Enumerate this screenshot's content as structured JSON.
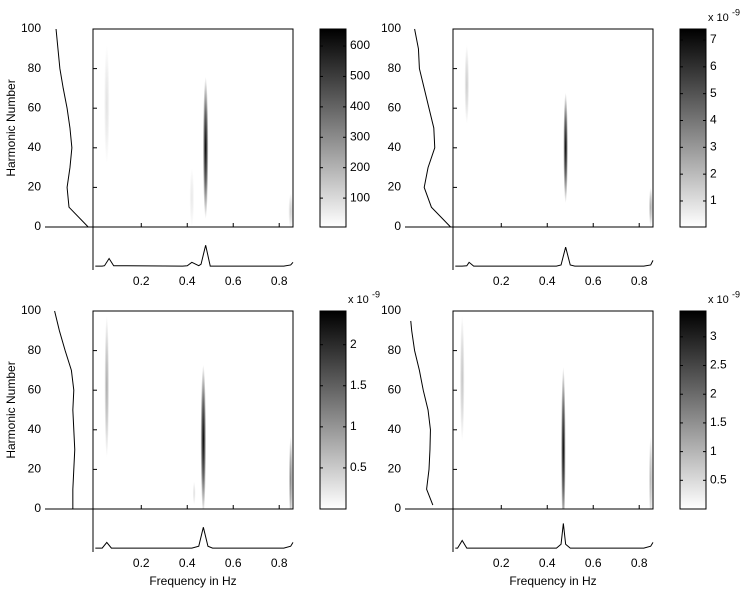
{
  "chart_data": [
    {
      "type": "heatmap",
      "ylabel": "Harmonic Number",
      "xlim": [
        -0.01,
        0.86
      ],
      "xticks": [
        0.2,
        0.4,
        0.6,
        0.8
      ],
      "ylim": [
        0,
        100
      ],
      "yticks": [
        0,
        20,
        40,
        60,
        80,
        100
      ],
      "clim": [
        5,
        656
      ],
      "cticks": [
        100,
        200,
        300,
        400,
        500,
        600
      ],
      "blobs": [
        {
          "freq": 0.48,
          "freq_spread": 0.012,
          "harmonic": 40,
          "harmonic_spread": 36,
          "peak": 650
        },
        {
          "freq": 0.05,
          "freq_spread": 0.012,
          "harmonic": 62,
          "harmonic_spread": 30,
          "peak": 80
        },
        {
          "freq": 0.42,
          "freq_spread": 0.01,
          "harmonic": 15,
          "harmonic_spread": 15,
          "peak": 60
        },
        {
          "freq": 0.85,
          "freq_spread": 0.01,
          "harmonic": 8,
          "harmonic_spread": 9,
          "peak": 120
        }
      ],
      "profile": {
        "harmonics": [
          100,
          90,
          80,
          70,
          60,
          50,
          40,
          30,
          20,
          10,
          0
        ],
        "values": [
          0.23,
          0.27,
          0.31,
          0.38,
          0.46,
          0.52,
          0.56,
          0.52,
          0.46,
          0.5,
          0.9
        ]
      },
      "spectrum": {
        "freqs": [
          0,
          0.03,
          0.04,
          0.06,
          0.08,
          0.38,
          0.4,
          0.42,
          0.45,
          0.46,
          0.48,
          0.5,
          0.82,
          0.85,
          0.86
        ],
        "values": [
          0.05,
          0.05,
          0.06,
          0.25,
          0.06,
          0.05,
          0.06,
          0.15,
          0.06,
          0.1,
          0.6,
          0.05,
          0.05,
          0.08,
          0.15
        ]
      }
    },
    {
      "type": "heatmap",
      "xlim": [
        -0.01,
        0.86
      ],
      "xticks": [
        0.2,
        0.4,
        0.6,
        0.8
      ],
      "ylim": [
        0,
        100
      ],
      "yticks": [
        0,
        20,
        40,
        60,
        80,
        100
      ],
      "clim": [
        0.03,
        7.41
      ],
      "cticks": [
        1,
        2,
        3,
        4,
        5,
        6,
        7
      ],
      "colorbar_exponent": {
        "base": "x 10",
        "power": "-9"
      },
      "blobs": [
        {
          "freq": 0.48,
          "freq_spread": 0.01,
          "harmonic": 40,
          "harmonic_spread": 28,
          "peak": 7.3
        },
        {
          "freq": 0.05,
          "freq_spread": 0.01,
          "harmonic": 72,
          "harmonic_spread": 20,
          "peak": 1.5
        },
        {
          "freq": 0.85,
          "freq_spread": 0.008,
          "harmonic": 10,
          "harmonic_spread": 10,
          "peak": 2.5
        }
      ],
      "profile": {
        "harmonics": [
          100,
          90,
          80,
          70,
          60,
          50,
          40,
          30,
          20,
          10,
          0
        ],
        "values": [
          0.2,
          0.28,
          0.3,
          0.4,
          0.5,
          0.6,
          0.62,
          0.48,
          0.4,
          0.55,
          0.95
        ]
      },
      "spectrum": {
        "freqs": [
          0,
          0.03,
          0.05,
          0.06,
          0.08,
          0.44,
          0.46,
          0.48,
          0.5,
          0.52,
          0.82,
          0.85,
          0.86
        ],
        "values": [
          0.05,
          0.05,
          0.06,
          0.15,
          0.05,
          0.05,
          0.08,
          0.55,
          0.08,
          0.05,
          0.05,
          0.08,
          0.2
        ]
      }
    },
    {
      "type": "heatmap",
      "ylabel": "Harmonic Number",
      "xlabel": "Frequency in Hz",
      "xlim": [
        -0.01,
        0.86
      ],
      "xticks": [
        0.2,
        0.4,
        0.6,
        0.8
      ],
      "ylim": [
        0,
        100
      ],
      "yticks": [
        0,
        20,
        40,
        60,
        80,
        100
      ],
      "clim": [
        0,
        2.41
      ],
      "cticks": [
        0.5,
        1,
        1.5,
        2
      ],
      "colorbar_exponent": {
        "base": "x 10",
        "power": "-9"
      },
      "blobs": [
        {
          "freq": 0.47,
          "freq_spread": 0.012,
          "harmonic": 35,
          "harmonic_spread": 38,
          "peak": 2.4
        },
        {
          "freq": 0.05,
          "freq_spread": 0.01,
          "harmonic": 62,
          "harmonic_spread": 36,
          "peak": 0.8
        },
        {
          "freq": 0.85,
          "freq_spread": 0.008,
          "harmonic": 15,
          "harmonic_spread": 22,
          "peak": 1.2
        },
        {
          "freq": 0.43,
          "freq_spread": 0.006,
          "harmonic": 8,
          "harmonic_spread": 6,
          "peak": 0.3
        }
      ],
      "profile": {
        "harmonics": [
          100,
          90,
          80,
          70,
          60,
          50,
          40,
          30,
          20,
          10,
          0
        ],
        "values": [
          0.2,
          0.3,
          0.42,
          0.55,
          0.6,
          0.58,
          0.6,
          0.62,
          0.6,
          0.58,
          0.58
        ]
      },
      "spectrum": {
        "freqs": [
          0,
          0.03,
          0.05,
          0.07,
          0.42,
          0.45,
          0.47,
          0.49,
          0.51,
          0.82,
          0.85,
          0.86
        ],
        "values": [
          0.05,
          0.05,
          0.2,
          0.05,
          0.05,
          0.1,
          0.6,
          0.1,
          0.05,
          0.05,
          0.1,
          0.2
        ]
      }
    },
    {
      "type": "heatmap",
      "xlabel": "Frequency in Hz",
      "xlim": [
        -0.01,
        0.86
      ],
      "xticks": [
        0.2,
        0.4,
        0.6,
        0.8
      ],
      "ylim": [
        0,
        100
      ],
      "yticks": [
        0,
        20,
        40,
        60,
        80,
        100
      ],
      "clim": [
        0,
        3.45
      ],
      "cticks": [
        0.5,
        1,
        1.5,
        2,
        2.5,
        3
      ],
      "colorbar_exponent": {
        "base": "x 10",
        "power": "-9"
      },
      "blobs": [
        {
          "freq": 0.47,
          "freq_spread": 0.01,
          "harmonic": 30,
          "harmonic_spread": 42,
          "peak": 3.4
        },
        {
          "freq": 0.03,
          "freq_spread": 0.01,
          "harmonic": 66,
          "harmonic_spread": 32,
          "peak": 0.8
        },
        {
          "freq": 0.85,
          "freq_spread": 0.008,
          "harmonic": 15,
          "harmonic_spread": 22,
          "peak": 1.0
        }
      ],
      "profile": {
        "harmonics": [
          95,
          90,
          80,
          70,
          60,
          50,
          40,
          30,
          20,
          10,
          2
        ],
        "values": [
          0.12,
          0.14,
          0.2,
          0.3,
          0.38,
          0.48,
          0.53,
          0.52,
          0.5,
          0.45,
          0.58
        ]
      },
      "spectrum": {
        "freqs": [
          0,
          0.01,
          0.03,
          0.05,
          0.44,
          0.46,
          0.47,
          0.48,
          0.5,
          0.82,
          0.85,
          0.86
        ],
        "values": [
          0.05,
          0.05,
          0.25,
          0.05,
          0.05,
          0.15,
          0.7,
          0.15,
          0.05,
          0.05,
          0.1,
          0.2
        ]
      }
    }
  ]
}
